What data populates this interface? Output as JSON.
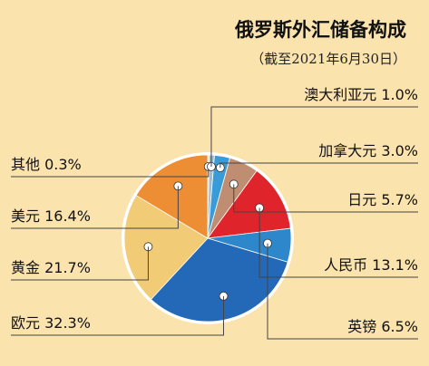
{
  "chart_data": {
    "type": "pie",
    "title": "俄罗斯外汇储备构成",
    "subtitle": "（截至2021年6月30日）",
    "unit": "%",
    "slices": [
      {
        "label": "其他",
        "value": 0.3,
        "display": "其他 0.3%",
        "color": "#F2E0A8"
      },
      {
        "label": "澳大利亚元",
        "value": 1.0,
        "display": "澳大利亚元 1.0%",
        "color": "#9BBDD6"
      },
      {
        "label": "加拿大元",
        "value": 3.0,
        "display": "加拿大元 3.0%",
        "color": "#3A9BD9"
      },
      {
        "label": "日元",
        "value": 5.7,
        "display": "日元 5.7%",
        "color": "#BF8E72"
      },
      {
        "label": "人民币",
        "value": 13.1,
        "display": "人民币 13.1%",
        "color": "#E0242C"
      },
      {
        "label": "英镑",
        "value": 6.5,
        "display": "英镑 6.5%",
        "color": "#2E86CB"
      },
      {
        "label": "欧元",
        "value": 32.3,
        "display": "欧元 32.3%",
        "color": "#2469B8"
      },
      {
        "label": "黄金",
        "value": 21.7,
        "display": "黄金 21.7%",
        "color": "#F2CB76"
      },
      {
        "label": "美元",
        "value": 16.4,
        "display": "美元 16.4%",
        "color": "#EE8E34"
      }
    ],
    "legend": "callout labels"
  }
}
